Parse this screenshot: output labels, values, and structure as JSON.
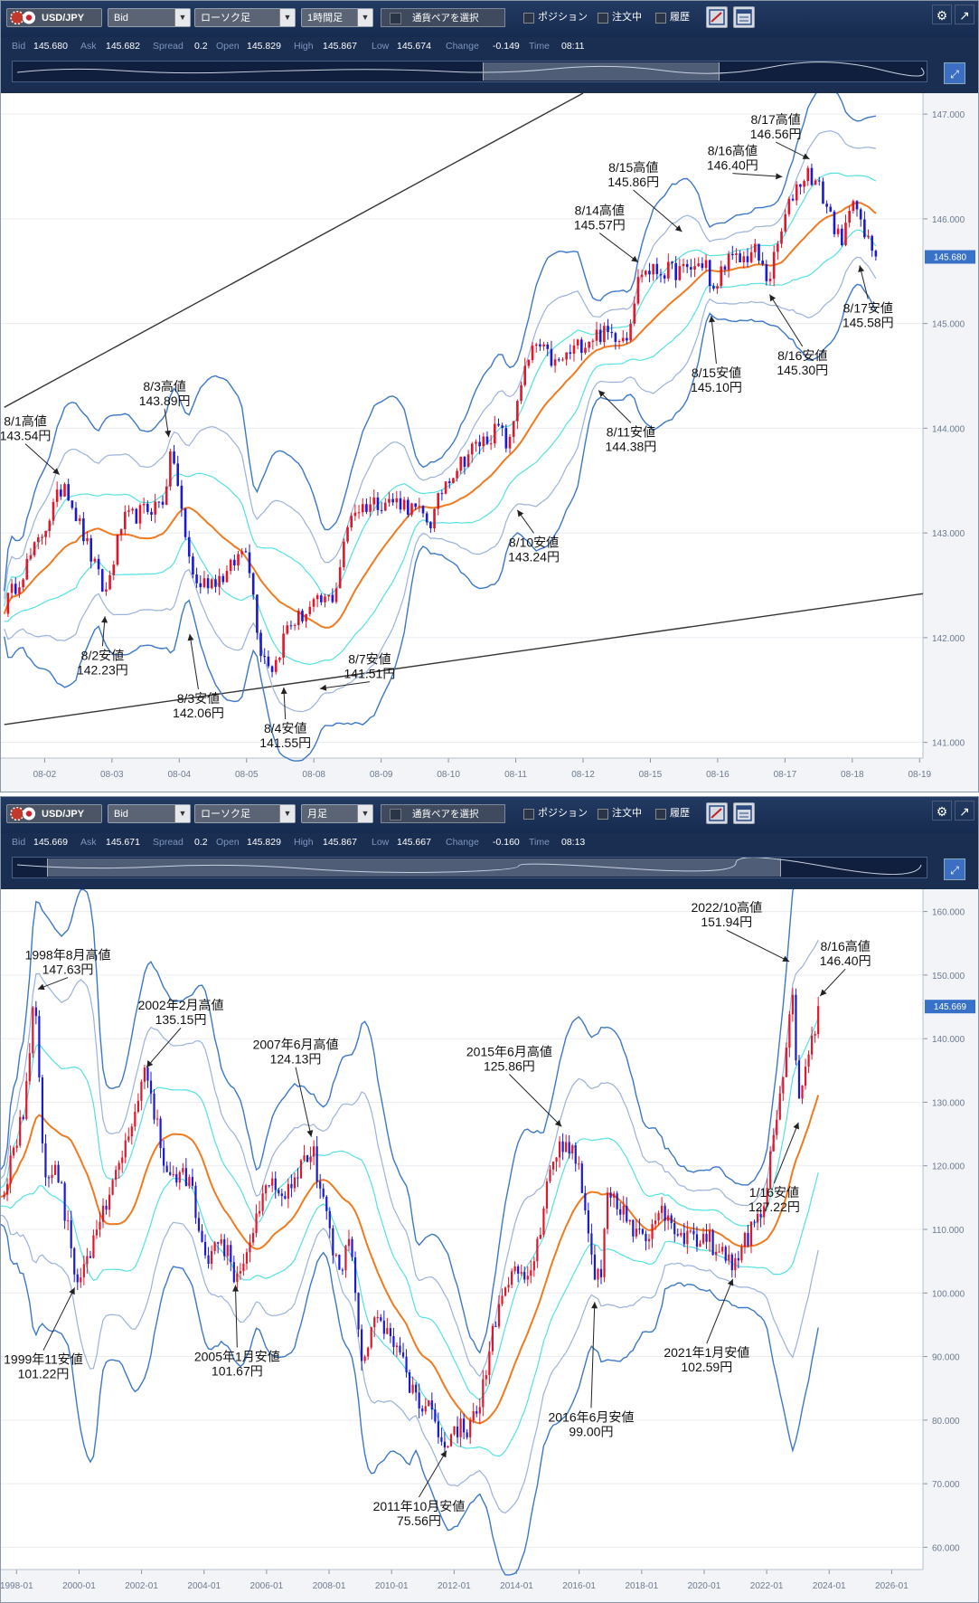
{
  "panels": [
    {
      "toolbar": {
        "pair": "USD/JPY",
        "price_type": "Bid",
        "chart_type": "ローソク足",
        "timeframe": "1時間足",
        "select_pair": "通貨ペアを選択",
        "position": "ポジション",
        "orders": "注文中",
        "history": "履歴"
      },
      "quote": {
        "bid_label": "Bid",
        "bid": "145.680",
        "ask_label": "Ask",
        "ask": "145.682",
        "spread_label": "Spread",
        "spread": "0.2",
        "open_label": "Open",
        "open": "145.829",
        "high_label": "High",
        "high": "145.867",
        "low_label": "Low",
        "low": "145.674",
        "change_label": "Change",
        "change": "-0.149",
        "time_label": "Time",
        "time": "08:11"
      },
      "current_price": "145.680"
    },
    {
      "toolbar": {
        "pair": "USD/JPY",
        "price_type": "Bid",
        "chart_type": "ローソク足",
        "timeframe": "月足",
        "select_pair": "通貨ペアを選択",
        "position": "ポジション",
        "orders": "注文中",
        "history": "履歴"
      },
      "quote": {
        "bid_label": "Bid",
        "bid": "145.669",
        "ask_label": "Ask",
        "ask": "145.671",
        "spread_label": "Spread",
        "spread": "0.2",
        "open_label": "Open",
        "open": "145.829",
        "high_label": "High",
        "high": "145.867",
        "low_label": "Low",
        "low": "145.667",
        "change_label": "Change",
        "change": "-0.160",
        "time_label": "Time",
        "time": "08:13"
      },
      "current_price": "145.669"
    }
  ],
  "colors": {
    "price_up": "#e2162b",
    "price_down": "#1a1ad2",
    "ma": "#f07a1f",
    "band1": "#55e1e1",
    "band2": "#9ab2dc",
    "band3": "#3c78c8",
    "trend": "#333333"
  },
  "chart_data": [
    {
      "type": "candlestick",
      "title": "USD/JPY 1時間足",
      "ylim": [
        140.85,
        147.2
      ],
      "xlim": [
        -0.05,
        13.65
      ],
      "y_ticks": [
        141,
        142,
        143,
        144,
        145,
        146,
        147
      ],
      "y_tick_labels": [
        "141.000",
        "142.000",
        "143.000",
        "144.000",
        "145.000",
        "146.000",
        "147.000"
      ],
      "x_ticks": [
        0.6,
        1.6,
        2.6,
        3.6,
        4.6,
        5.6,
        6.6,
        7.6,
        8.6,
        9.6,
        10.6,
        11.6,
        12.6,
        13.6
      ],
      "x_tick_labels": [
        "08-02",
        "08-03",
        "08-04",
        "08-05",
        "08-08",
        "08-09",
        "08-10",
        "08-11",
        "08-12",
        "08-15",
        "08-16",
        "08-17",
        "08-18",
        "08-19"
      ],
      "anchors": [
        [
          0.0,
          142.3
        ],
        [
          0.5,
          142.9
        ],
        [
          0.9,
          143.5
        ],
        [
          1.05,
          143.2
        ],
        [
          1.5,
          142.4
        ],
        [
          1.75,
          143.1
        ],
        [
          2.35,
          143.3
        ],
        [
          2.5,
          143.8
        ],
        [
          2.7,
          142.9
        ],
        [
          2.85,
          142.5
        ],
        [
          3.3,
          142.6
        ],
        [
          3.6,
          142.9
        ],
        [
          3.8,
          141.9
        ],
        [
          4.0,
          141.7
        ],
        [
          4.2,
          142.1
        ],
        [
          4.6,
          142.3
        ],
        [
          4.9,
          142.4
        ],
        [
          5.15,
          143.2
        ],
        [
          5.5,
          143.3
        ],
        [
          5.9,
          143.3
        ],
        [
          6.35,
          143.1
        ],
        [
          6.55,
          143.5
        ],
        [
          6.95,
          143.8
        ],
        [
          7.35,
          144.0
        ],
        [
          7.5,
          143.8
        ],
        [
          7.65,
          144.4
        ],
        [
          7.9,
          144.8
        ],
        [
          8.2,
          144.6
        ],
        [
          8.55,
          144.8
        ],
        [
          8.8,
          144.9
        ],
        [
          9.25,
          144.9
        ],
        [
          9.45,
          145.5
        ],
        [
          9.75,
          145.5
        ],
        [
          10.1,
          145.5
        ],
        [
          10.45,
          145.6
        ],
        [
          10.5,
          145.2
        ],
        [
          10.7,
          145.6
        ],
        [
          10.95,
          145.6
        ],
        [
          11.15,
          145.7
        ],
        [
          11.35,
          145.4
        ],
        [
          11.6,
          146.0
        ],
        [
          11.75,
          146.3
        ],
        [
          11.95,
          146.45
        ],
        [
          12.1,
          146.3
        ],
        [
          12.3,
          146.0
        ],
        [
          12.45,
          145.7
        ],
        [
          12.6,
          146.3
        ],
        [
          12.75,
          145.85
        ],
        [
          12.95,
          145.68
        ]
      ],
      "noise": 0.09,
      "trendlines": [
        {
          "x1": 0.0,
          "y1": 144.2,
          "x2": 8.6,
          "y2": 147.2
        },
        {
          "x1": 0.0,
          "y1": 141.17,
          "x2": 13.65,
          "y2": 142.42
        }
      ],
      "annotations": [
        {
          "label": "8/1高値",
          "value": "143.54円",
          "x": 0.85,
          "y": 143.54,
          "dx": -40,
          "dy": -36
        },
        {
          "label": "8/3高値",
          "value": "143.89円",
          "x": 2.45,
          "y": 143.89,
          "dx": -5,
          "dy": -34
        },
        {
          "label": "8/2安値",
          "value": "142.23円",
          "x": 1.5,
          "y": 142.23,
          "dx": -3,
          "dy": 36
        },
        {
          "label": "8/3安値",
          "value": "142.06円",
          "x": 2.75,
          "y": 142.06,
          "dx": 10,
          "dy": 64
        },
        {
          "label": "8/4安値",
          "value": "141.55円",
          "x": 4.15,
          "y": 141.55,
          "dx": 2,
          "dy": 38
        },
        {
          "label": "8/7安値",
          "value": "141.51円",
          "x": 4.65,
          "y": 141.51,
          "dx": 58,
          "dy": -8
        },
        {
          "label": "8/10安値",
          "value": "143.24円",
          "x": 7.6,
          "y": 143.24,
          "dx": 20,
          "dy": 28
        },
        {
          "label": "8/11安値",
          "value": "144.38円",
          "x": 8.8,
          "y": 144.38,
          "dx": 38,
          "dy": 38
        },
        {
          "label": "8/14高値",
          "value": "145.57円",
          "x": 9.45,
          "y": 145.57,
          "dx": -45,
          "dy": -34
        },
        {
          "label": "8/15高値",
          "value": "145.86円",
          "x": 10.1,
          "y": 145.86,
          "dx": -56,
          "dy": -48
        },
        {
          "label": "8/15安値",
          "value": "145.10円",
          "x": 10.5,
          "y": 145.1,
          "dx": 6,
          "dy": 56
        },
        {
          "label": "8/16高値",
          "value": "146.40円",
          "x": 11.6,
          "y": 146.4,
          "dx": -58,
          "dy": -4
        },
        {
          "label": "8/16安値",
          "value": "145.30円",
          "x": 11.35,
          "y": 145.3,
          "dx": 38,
          "dy": 60
        },
        {
          "label": "8/17高値",
          "value": "146.56円",
          "x": 12.0,
          "y": 146.56,
          "dx": -40,
          "dy": -20
        },
        {
          "label": "8/17安値",
          "value": "145.58円",
          "x": 12.7,
          "y": 145.58,
          "dx": 10,
          "dy": 40
        }
      ]
    },
    {
      "type": "candlestick",
      "title": "USD/JPY 月足",
      "ylim": [
        56.5,
        163.5
      ],
      "xlim": [
        1997.5,
        2027.0
      ],
      "y_ticks": [
        60,
        70,
        80,
        90,
        100,
        110,
        120,
        130,
        140,
        150,
        160
      ],
      "y_tick_labels": [
        "60.000",
        "70.000",
        "80.000",
        "90.000",
        "100.000",
        "110.000",
        "120.000",
        "130.000",
        "140.000",
        "150.000",
        "160.000"
      ],
      "x_ticks": [
        1998,
        2000,
        2002,
        2004,
        2006,
        2008,
        2010,
        2012,
        2014,
        2016,
        2018,
        2020,
        2022,
        2024,
        2026
      ],
      "x_tick_labels": [
        "1998-01",
        "2000-01",
        "2002-01",
        "2004-01",
        "2006-01",
        "2008-01",
        "2010-01",
        "2012-01",
        "2014-01",
        "2016-01",
        "2018-01",
        "2020-01",
        "2022-01",
        "2024-01",
        "2026-01"
      ],
      "anchors": [
        [
          1997.5,
          115
        ],
        [
          1998.2,
          128
        ],
        [
          1998.6,
          147
        ],
        [
          1998.9,
          118
        ],
        [
          1999.3,
          120
        ],
        [
          1999.9,
          102
        ],
        [
          2000.4,
          107
        ],
        [
          2000.9,
          114
        ],
        [
          2001.5,
          123
        ],
        [
          2002.1,
          135
        ],
        [
          2002.8,
          119
        ],
        [
          2003.5,
          118
        ],
        [
          2004.1,
          106
        ],
        [
          2004.8,
          108
        ],
        [
          2005.0,
          102
        ],
        [
          2005.6,
          111
        ],
        [
          2005.95,
          118
        ],
        [
          2006.6,
          116
        ],
        [
          2007.45,
          123
        ],
        [
          2007.8,
          114
        ],
        [
          2008.3,
          104
        ],
        [
          2008.7,
          108
        ],
        [
          2009.0,
          90
        ],
        [
          2009.5,
          96
        ],
        [
          2010.2,
          91
        ],
        [
          2010.8,
          83
        ],
        [
          2011.3,
          81
        ],
        [
          2011.8,
          76
        ],
        [
          2012.2,
          80
        ],
        [
          2012.5,
          78
        ],
        [
          2012.95,
          86
        ],
        [
          2013.4,
          98
        ],
        [
          2014.0,
          103
        ],
        [
          2014.5,
          102
        ],
        [
          2015.0,
          118
        ],
        [
          2015.5,
          124
        ],
        [
          2015.95,
          121
        ],
        [
          2016.4,
          107
        ],
        [
          2016.5,
          102
        ],
        [
          2016.7,
          104
        ],
        [
          2016.95,
          116
        ],
        [
          2017.5,
          112
        ],
        [
          2018.0,
          108
        ],
        [
          2018.8,
          113
        ],
        [
          2019.4,
          108
        ],
        [
          2019.9,
          109
        ],
        [
          2020.5,
          107
        ],
        [
          2020.95,
          104
        ],
        [
          2021.5,
          110
        ],
        [
          2021.95,
          115
        ],
        [
          2022.4,
          130
        ],
        [
          2022.8,
          148
        ],
        [
          2023.05,
          130
        ],
        [
          2023.5,
          140
        ],
        [
          2023.65,
          145
        ]
      ],
      "noise": 1.8,
      "annotations": [
        {
          "label": "1998年8月高値",
          "value": "147.63円",
          "x": 1998.6,
          "y": 147.63,
          "dx": 36,
          "dy": -14
        },
        {
          "label": "2002年2月高値",
          "value": "135.15円",
          "x": 2002.1,
          "y": 135.15,
          "dx": 40,
          "dy": -46
        },
        {
          "label": "2007年6月高値",
          "value": "124.13円",
          "x": 2007.45,
          "y": 124.13,
          "dx": -18,
          "dy": -80
        },
        {
          "label": "2015年6月高値",
          "value": "125.86円",
          "x": 2015.5,
          "y": 125.86,
          "dx": -60,
          "dy": -60
        },
        {
          "label": "2022/10高値",
          "value": "151.94円",
          "x": 2022.8,
          "y": 151.94,
          "dx": -72,
          "dy": -36
        },
        {
          "label": "8/16高値",
          "value": "146.40円",
          "x": 2023.65,
          "y": 146.4,
          "dx": 30,
          "dy": -32
        },
        {
          "label": "1999年11安値",
          "value": "101.22円",
          "x": 1999.9,
          "y": 101.22,
          "dx": -36,
          "dy": 72
        },
        {
          "label": "2005年1月安値",
          "value": "101.67円",
          "x": 2005.0,
          "y": 101.67,
          "dx": 2,
          "dy": 72
        },
        {
          "label": "2011年10月安値",
          "value": "75.56円",
          "x": 2011.8,
          "y": 75.56,
          "dx": -32,
          "dy": 54
        },
        {
          "label": "2016年6月安値",
          "value": "99.00円",
          "x": 2016.5,
          "y": 99.0,
          "dx": -4,
          "dy": 120
        },
        {
          "label": "2021年1月安値",
          "value": "102.59円",
          "x": 2020.95,
          "y": 102.59,
          "dx": -30,
          "dy": 74
        },
        {
          "label": "1/16安値",
          "value": "127.22円",
          "x": 2023.05,
          "y": 127.22,
          "dx": -28,
          "dy": 70
        }
      ]
    }
  ]
}
